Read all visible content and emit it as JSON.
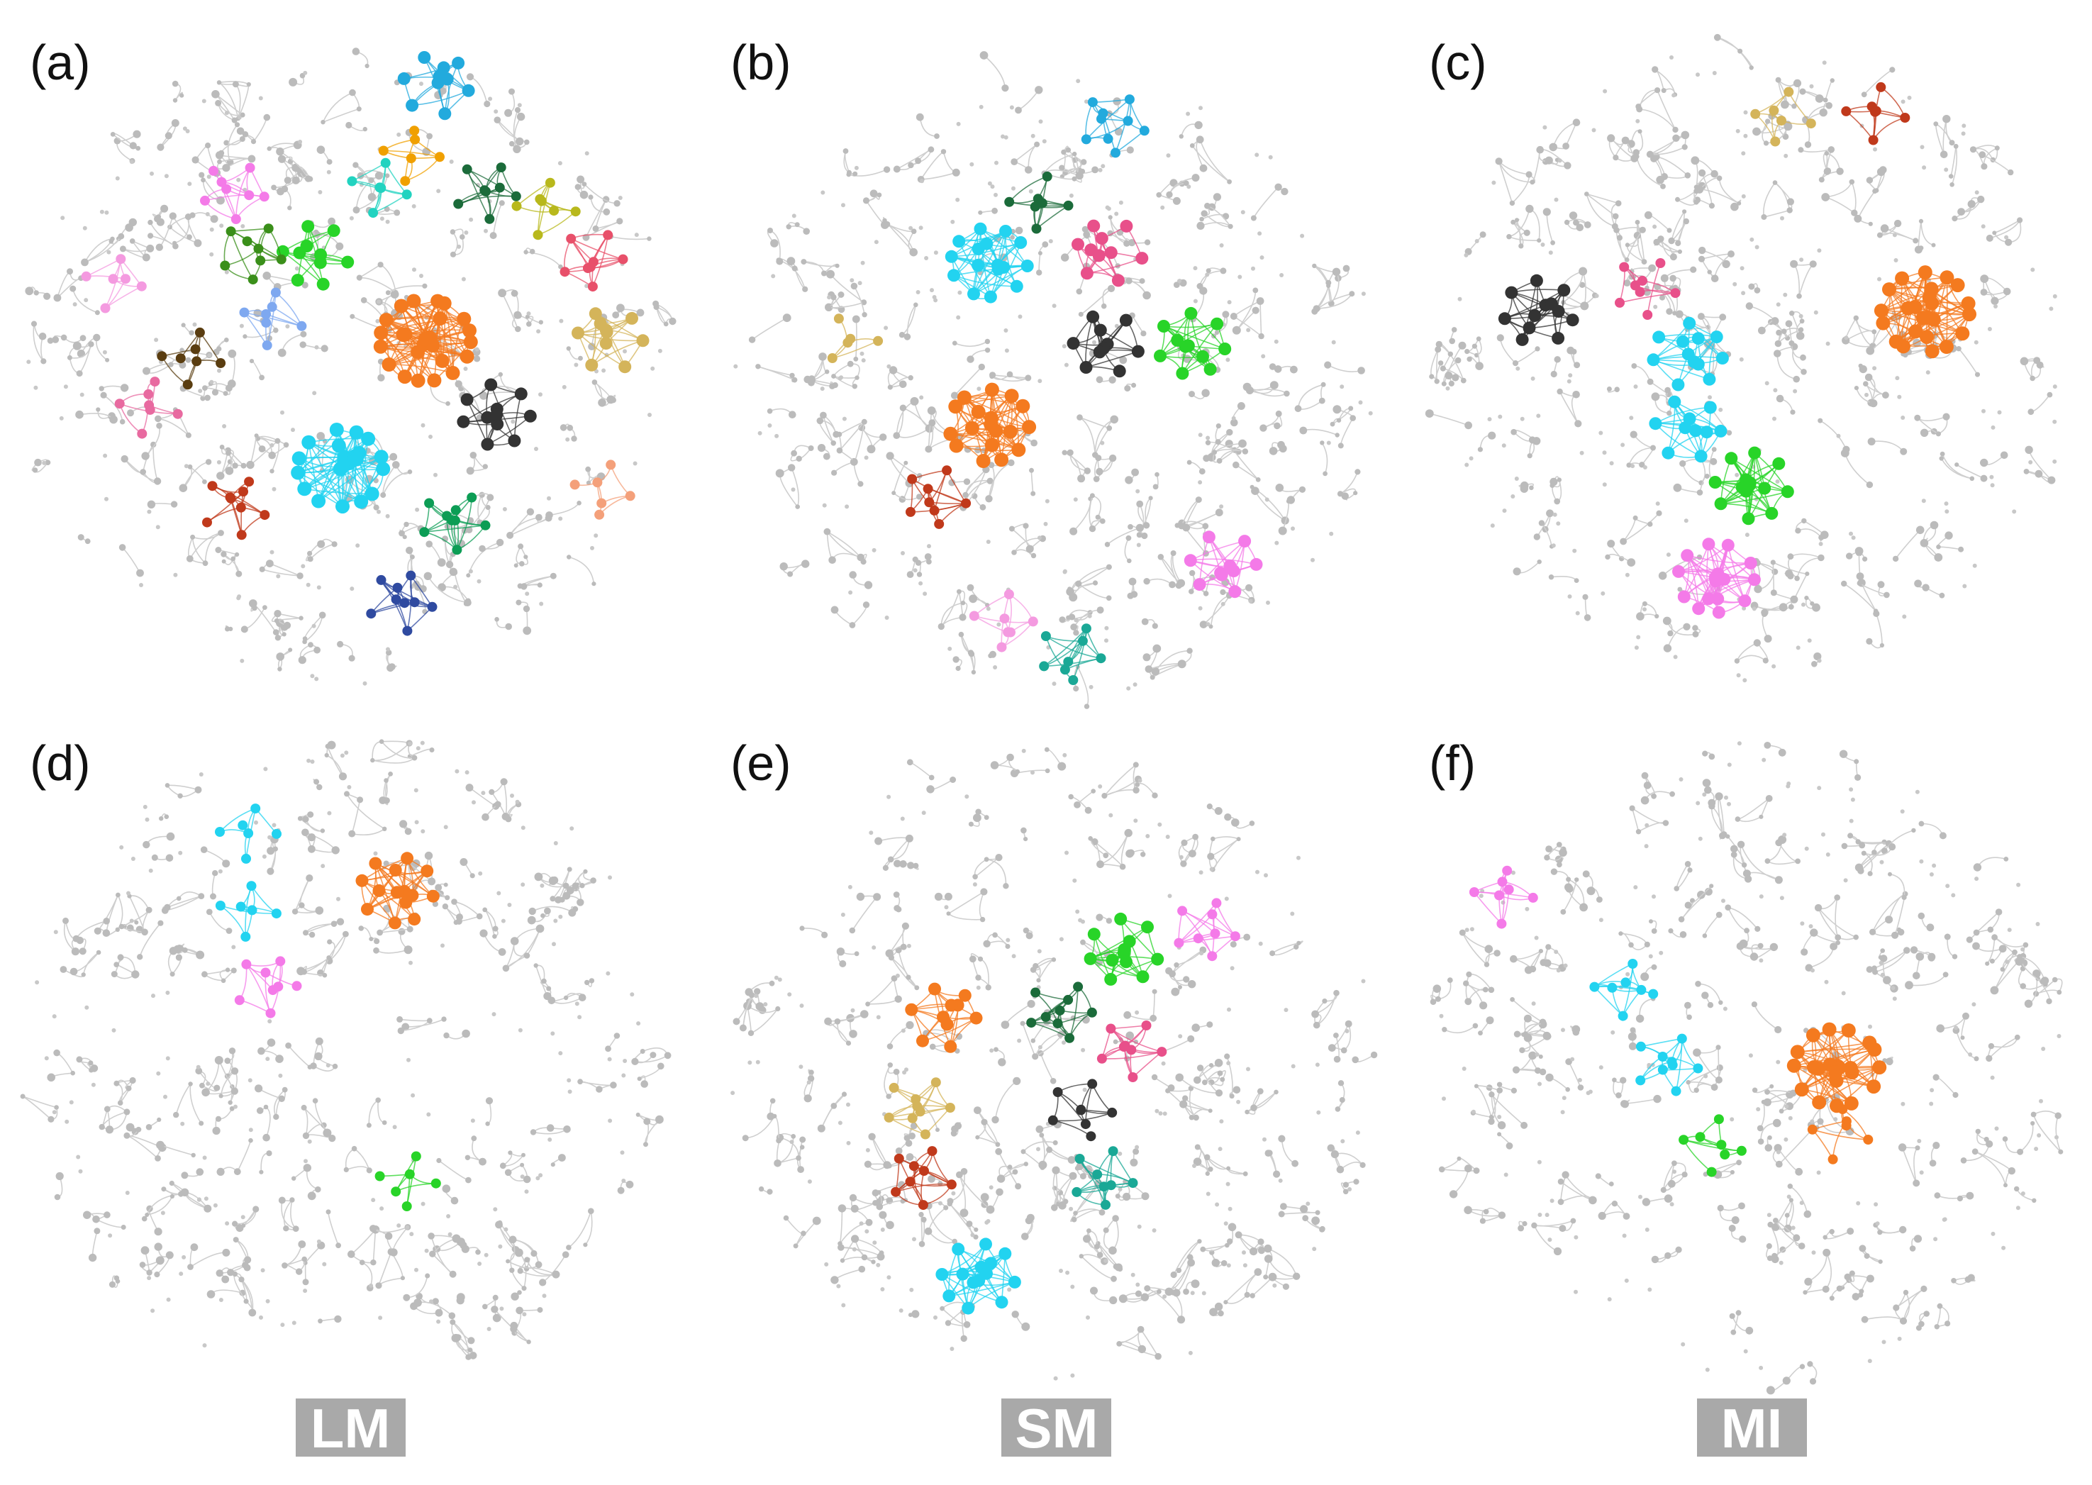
{
  "figure": {
    "panels": [
      {
        "label": "(a)",
        "clusters": [
          {
            "color": "#f47a1f",
            "size": 26
          },
          {
            "color": "#22d3f0",
            "size": 22
          },
          {
            "color": "#333333",
            "size": 11
          },
          {
            "color": "#28d428",
            "size": 10
          },
          {
            "color": "#d4b45a",
            "size": 10
          },
          {
            "color": "#c0391b",
            "size": 9
          },
          {
            "color": "#0c9d55",
            "size": 9
          },
          {
            "color": "#2f4aa0",
            "size": 9
          },
          {
            "color": "#f47ae8",
            "size": 8
          },
          {
            "color": "#e8506a",
            "size": 8
          },
          {
            "color": "#22aadd",
            "size": 10
          },
          {
            "color": "#1b6b3a",
            "size": 8
          },
          {
            "color": "#b8b81c",
            "size": 7
          },
          {
            "color": "#3a8f1a",
            "size": 8
          },
          {
            "color": "#7ea8f0",
            "size": 7
          },
          {
            "color": "#5a3d10",
            "size": 7
          },
          {
            "color": "#f49ae0",
            "size": 6
          },
          {
            "color": "#f4a07a",
            "size": 6
          },
          {
            "color": "#22d3c0",
            "size": 6
          },
          {
            "color": "#e86aa0",
            "size": 7
          },
          {
            "color": "#f0a000",
            "size": 6
          }
        ]
      },
      {
        "label": "(b)",
        "clusters": [
          {
            "color": "#f47a1f",
            "size": 18
          },
          {
            "color": "#22d3f0",
            "size": 16
          },
          {
            "color": "#28d428",
            "size": 11
          },
          {
            "color": "#333333",
            "size": 10
          },
          {
            "color": "#e8508a",
            "size": 10
          },
          {
            "color": "#22aadd",
            "size": 9
          },
          {
            "color": "#f47ae8",
            "size": 10
          },
          {
            "color": "#c0391b",
            "size": 8
          },
          {
            "color": "#f49ae0",
            "size": 7
          },
          {
            "color": "#1aa896",
            "size": 8
          },
          {
            "color": "#1b6b3a",
            "size": 7
          },
          {
            "color": "#d4b45a",
            "size": 5
          }
        ]
      },
      {
        "label": "(c)",
        "clusters": [
          {
            "color": "#f47a1f",
            "size": 24
          },
          {
            "color": "#22d3f0",
            "size": 12
          },
          {
            "color": "#22d3f0",
            "size": 10
          },
          {
            "color": "#28d428",
            "size": 14
          },
          {
            "color": "#f47ae8",
            "size": 16
          },
          {
            "color": "#333333",
            "size": 12
          },
          {
            "color": "#e8508a",
            "size": 8
          },
          {
            "color": "#d4b45a",
            "size": 6
          },
          {
            "color": "#c0391b",
            "size": 7
          }
        ]
      },
      {
        "label": "(d)",
        "clusters": [
          {
            "color": "#f47a1f",
            "size": 14
          },
          {
            "color": "#22d3f0",
            "size": 6
          },
          {
            "color": "#22d3f0",
            "size": 6
          },
          {
            "color": "#f47ae8",
            "size": 8
          },
          {
            "color": "#28d428",
            "size": 6
          }
        ]
      },
      {
        "label": "(e)",
        "clusters": [
          {
            "color": "#28d428",
            "size": 12
          },
          {
            "color": "#f47ae8",
            "size": 8
          },
          {
            "color": "#f47a1f",
            "size": 10
          },
          {
            "color": "#1b6b3a",
            "size": 9
          },
          {
            "color": "#e8508a",
            "size": 8
          },
          {
            "color": "#d4b45a",
            "size": 9
          },
          {
            "color": "#333333",
            "size": 8
          },
          {
            "color": "#c0391b",
            "size": 8
          },
          {
            "color": "#1aa896",
            "size": 8
          },
          {
            "color": "#22d3f0",
            "size": 14
          }
        ]
      },
      {
        "label": "(f)",
        "clusters": [
          {
            "color": "#f47a1f",
            "size": 22
          },
          {
            "color": "#f47a1f",
            "size": 6
          },
          {
            "color": "#f47ae8",
            "size": 7
          },
          {
            "color": "#22d3f0",
            "size": 7
          },
          {
            "color": "#22d3f0",
            "size": 9
          },
          {
            "color": "#28d428",
            "size": 7
          }
        ]
      }
    ],
    "column_labels": [
      "LM",
      "SM",
      "MI"
    ],
    "background_node_color": "#bbbbbb",
    "background_edge_color": "#cfcfcf"
  }
}
